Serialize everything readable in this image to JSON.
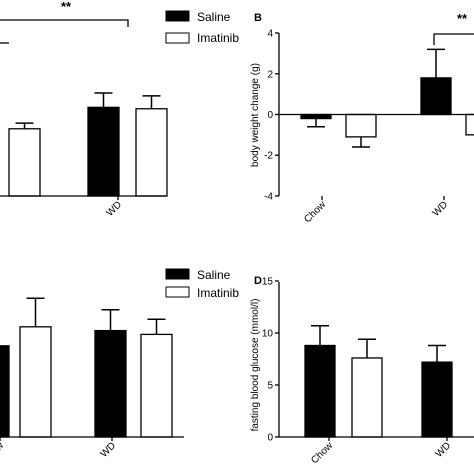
{
  "groups": [
    "Chow",
    "WD"
  ],
  "legend": {
    "saline": "Saline",
    "imatinib": "Imatinib",
    "saline_color": "#000000",
    "imatinib_color": "#ffffff"
  },
  "chart_data": [
    {
      "panel": "A",
      "type": "bar",
      "letter": "",
      "categories": [
        "",
        "WD"
      ],
      "series": [
        {
          "name": "Saline",
          "values": [
            null,
            62
          ],
          "errors": [
            null,
            10
          ]
        },
        {
          "name": "Imatinib",
          "values": [
            47,
            61
          ],
          "errors": [
            4,
            9
          ]
        }
      ],
      "ylabel": "",
      "ylim": [
        0,
        100
      ],
      "yticks": [],
      "significance": "**",
      "legend_position": "top-right"
    },
    {
      "panel": "B",
      "type": "bar",
      "letter": "B",
      "categories": [
        "Chow",
        "WD"
      ],
      "series": [
        {
          "name": "Saline",
          "values": [
            -0.2,
            1.8
          ],
          "errors": [
            0.4,
            1.4
          ]
        },
        {
          "name": "Imatinib",
          "values": [
            -1.1,
            -1.0
          ],
          "errors": [
            0.5,
            0.0
          ]
        }
      ],
      "ylabel": "body weight change (g)",
      "ylim": [
        -4,
        4
      ],
      "yticks": [
        "-4",
        "-2",
        "0",
        "2",
        "4"
      ],
      "significance": "**"
    },
    {
      "panel": "C",
      "type": "bar",
      "letter": "",
      "categories": [
        "ow",
        "WD"
      ],
      "series": [
        {
          "name": "Saline",
          "values": [
            48,
            56
          ],
          "errors": [
            0,
            11
          ]
        },
        {
          "name": "Imatinib",
          "values": [
            58,
            54
          ],
          "errors": [
            15,
            8
          ]
        }
      ],
      "ylabel": "",
      "ylim": [
        0,
        100
      ],
      "yticks": [],
      "legend_position": "top-right"
    },
    {
      "panel": "D",
      "type": "bar",
      "letter": "D",
      "categories": [
        "Chow",
        "WD"
      ],
      "series": [
        {
          "name": "Saline",
          "values": [
            8.8,
            7.2
          ],
          "errors": [
            1.9,
            1.6
          ]
        },
        {
          "name": "Imatinib",
          "values": [
            7.6,
            null
          ],
          "errors": [
            1.8,
            null
          ]
        }
      ],
      "ylabel": "fasting blood glucose (mmol/l)",
      "ylim": [
        0,
        15
      ],
      "yticks": [
        "0",
        "5",
        "10",
        "15"
      ]
    }
  ]
}
